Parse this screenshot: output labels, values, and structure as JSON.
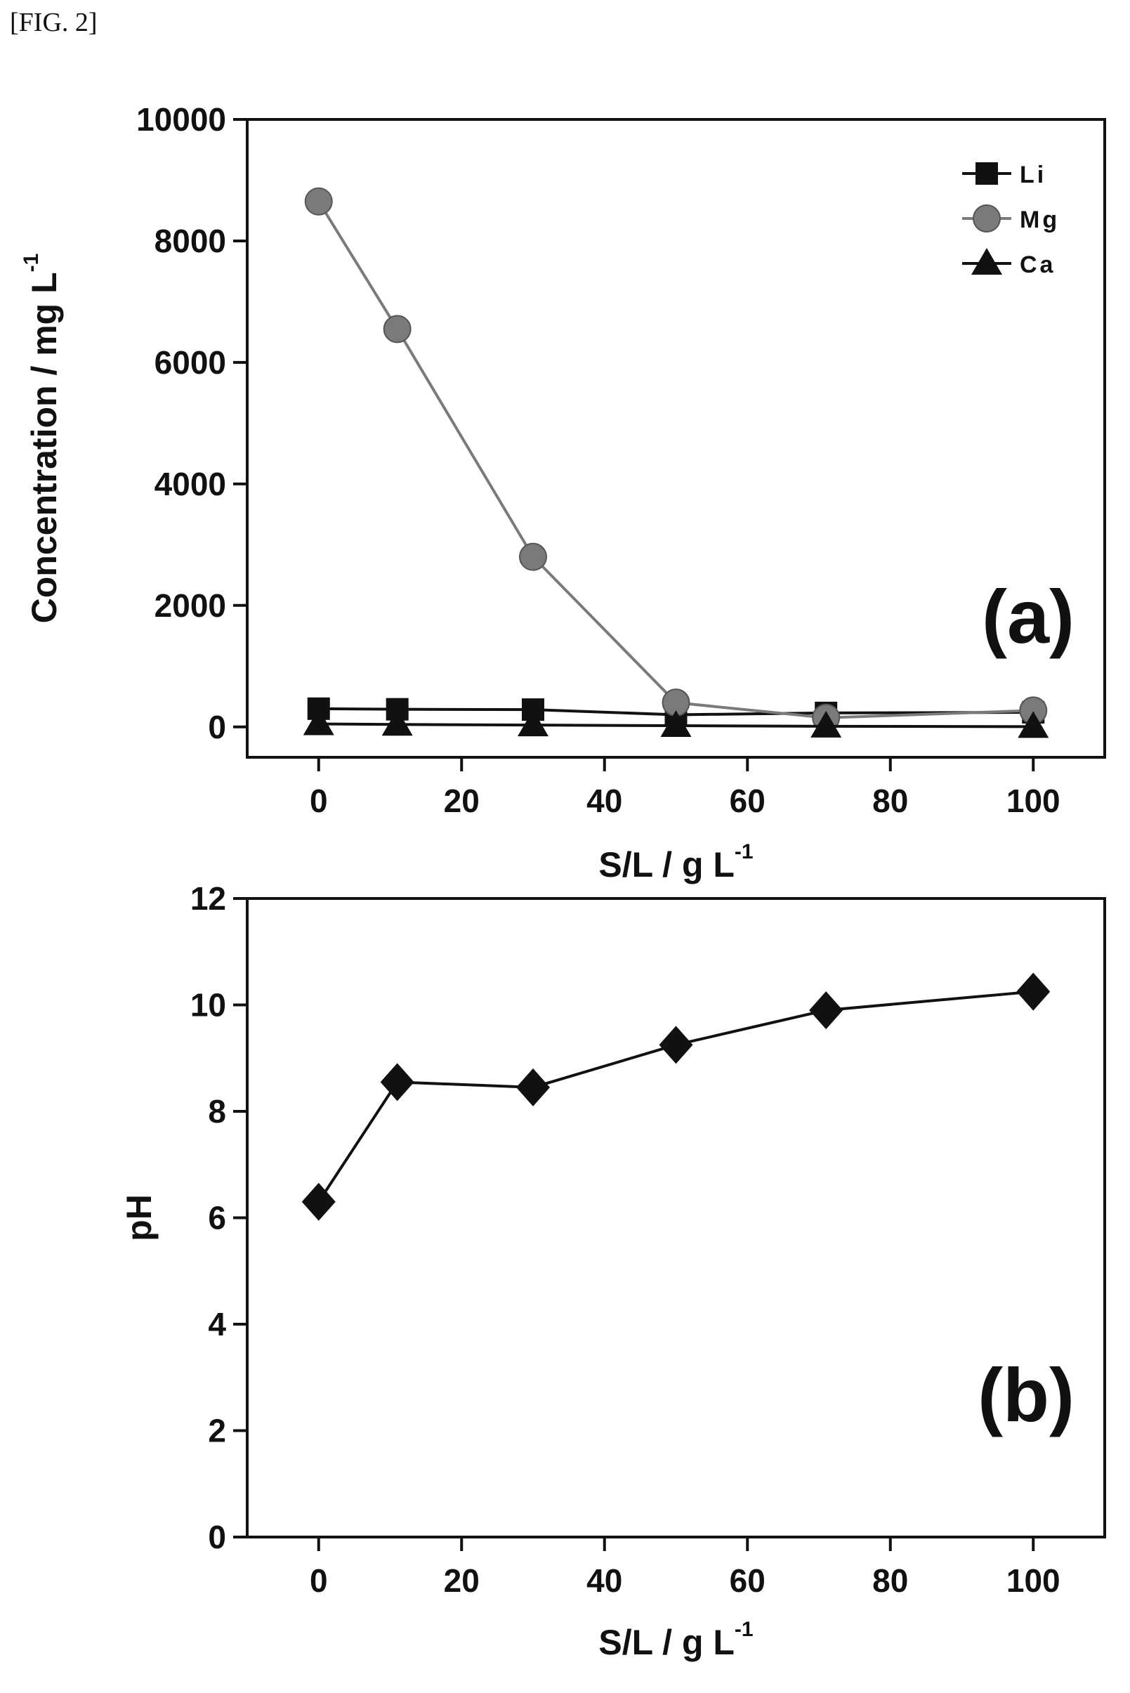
{
  "figure_label": "[FIG. 2]",
  "chart_data": [
    {
      "type": "line",
      "panel_label": "(a)",
      "xlabel": "S/L / g L",
      "xlabel_sup": "-1",
      "ylabel": "Concentration / mg L",
      "ylabel_sup": "-1",
      "x": [
        0,
        11,
        30,
        50,
        71,
        100
      ],
      "xlim": [
        -10,
        110
      ],
      "ylim": [
        -500,
        10000
      ],
      "xticks": [
        0,
        20,
        40,
        60,
        80,
        100
      ],
      "yticks": [
        0,
        2000,
        4000,
        6000,
        8000,
        10000
      ],
      "legend_position": "top-right",
      "grid": false,
      "series": [
        {
          "name": "Li",
          "marker": "square",
          "color": "#111111",
          "values": [
            300,
            290,
            285,
            200,
            230,
            240
          ]
        },
        {
          "name": "Mg",
          "marker": "circle",
          "color": "#7a7a7a",
          "values": [
            8650,
            6550,
            2800,
            400,
            150,
            270
          ]
        },
        {
          "name": "Ca",
          "marker": "triangle",
          "color": "#111111",
          "values": [
            50,
            40,
            30,
            20,
            10,
            5
          ]
        }
      ]
    },
    {
      "type": "line",
      "panel_label": "(b)",
      "xlabel": "S/L / g L",
      "xlabel_sup": "-1",
      "ylabel": "pH",
      "x": [
        0,
        11,
        30,
        50,
        71,
        100
      ],
      "xlim": [
        -10,
        110
      ],
      "ylim": [
        0,
        12
      ],
      "xticks": [
        0,
        20,
        40,
        60,
        80,
        100
      ],
      "yticks": [
        0,
        2,
        4,
        6,
        8,
        10,
        12
      ],
      "grid": false,
      "series": [
        {
          "marker": "diamond",
          "color": "#111111",
          "values": [
            6.3,
            8.55,
            8.45,
            9.25,
            9.9,
            10.25
          ]
        }
      ]
    }
  ]
}
